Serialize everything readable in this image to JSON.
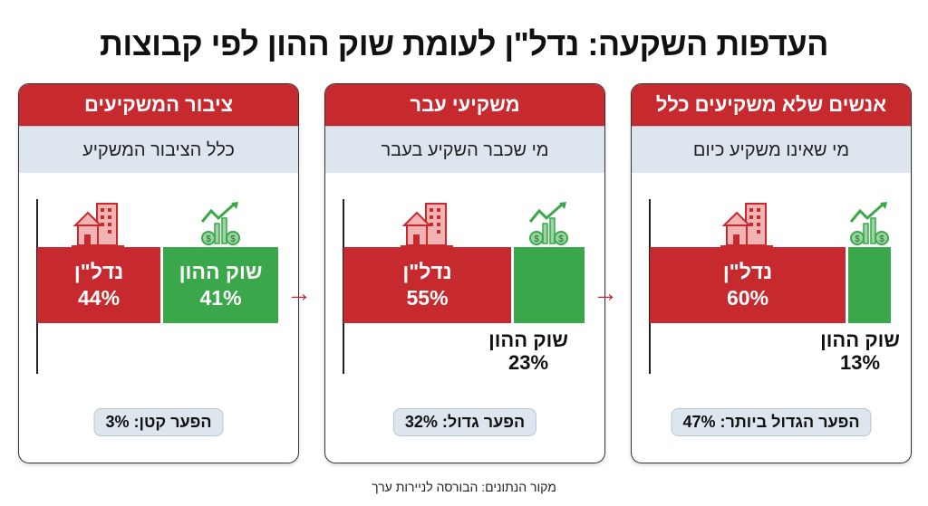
{
  "title": "העדפות השקעה: נדל\"ן לעומת שוק ההון לפי קבוצות",
  "colors": {
    "real_estate": "#c62a2f",
    "capital_market": "#3aa84a",
    "subheader": "#dde6ee"
  },
  "panels": [
    {
      "header": "ציבור המשקיעים",
      "sub": "כלל הציבור המשקיע",
      "re_label": "נדל\"ן",
      "re_value": "44%",
      "re": 44,
      "cm_label": "שוק ההון",
      "cm_value": "41%",
      "cm": 41,
      "gap": "הפער קטן: 3%"
    },
    {
      "header": "משקיעי עבר",
      "sub": "מי שכבר השקיע בעבר",
      "re_label": "נדל\"ן",
      "re_value": "55%",
      "re": 55,
      "cm_label": "שוק ההון",
      "cm_value": "23%",
      "cm": 23,
      "gap": "הפער גדול: 32%"
    },
    {
      "header": "אנשים שלא משקיעים כלל",
      "sub": "מי שאינו משקיע כיום",
      "re_label": "נדל\"ן",
      "re_value": "60%",
      "re": 60,
      "cm_label": "שוק ההון",
      "cm_value": "13%",
      "cm": 13,
      "gap": "הפער הגדול ביותר: 47%"
    }
  ],
  "source": "מקור הנתונים: הבורסה לניירות ערך"
}
